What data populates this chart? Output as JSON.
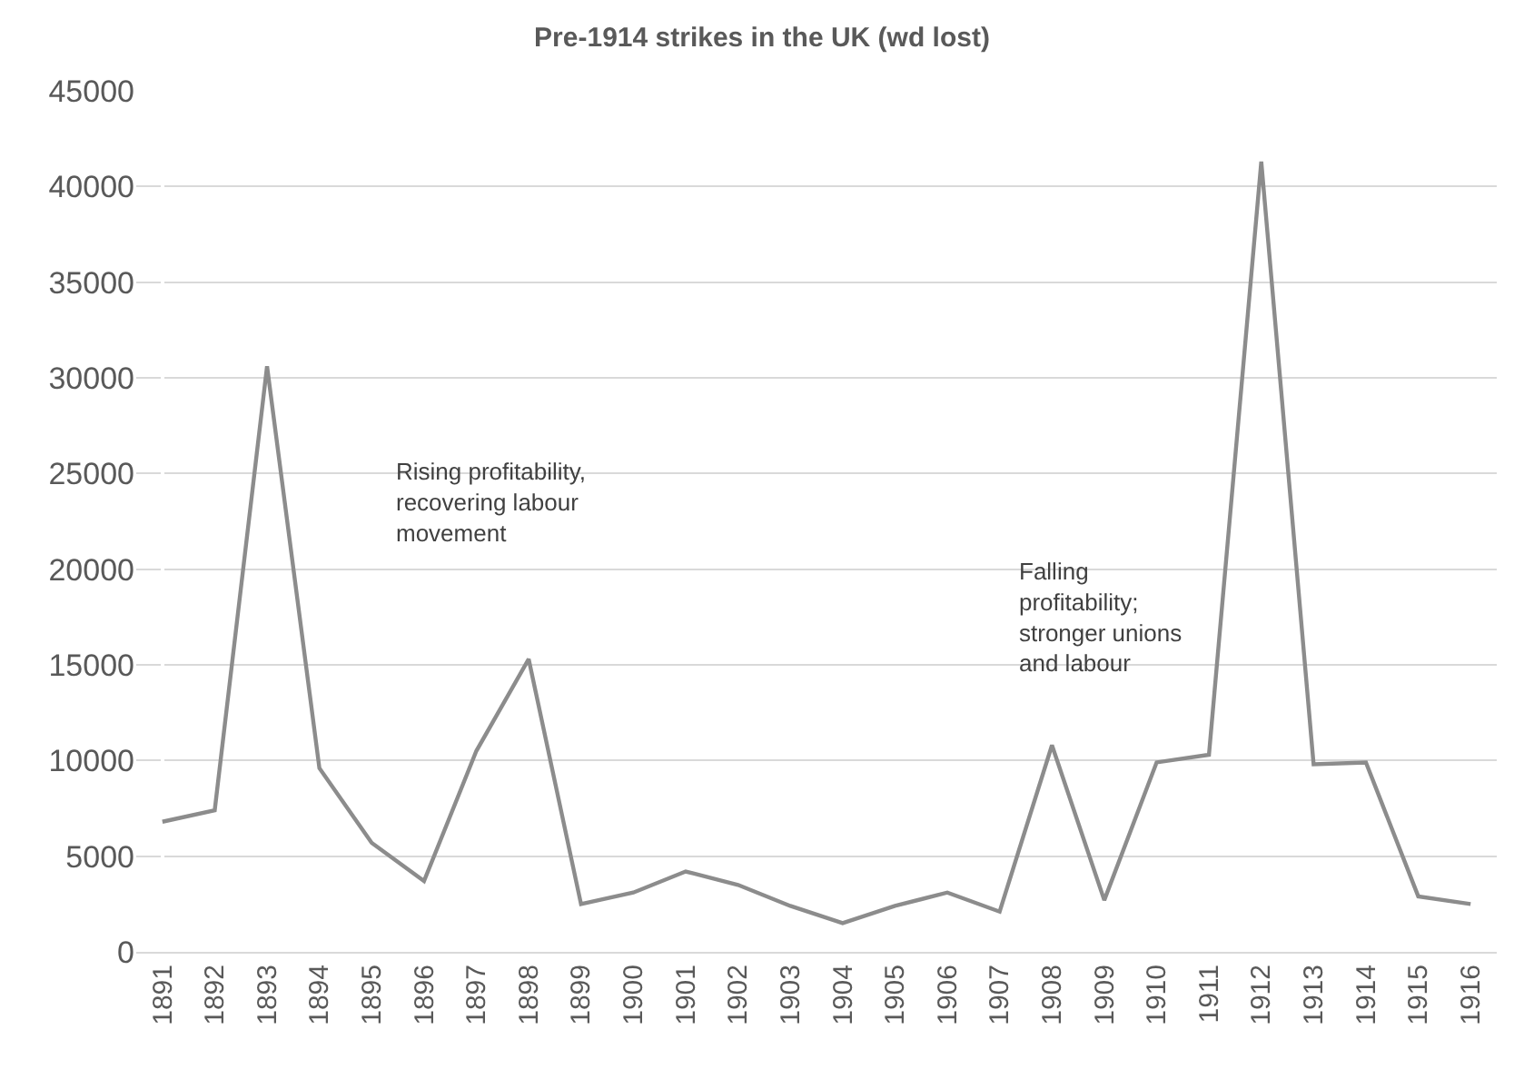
{
  "chart_data": {
    "type": "line",
    "title": "Pre-1914 strikes in the UK (wd lost)",
    "categories": [
      "1891",
      "1892",
      "1893",
      "1894",
      "1895",
      "1896",
      "1897",
      "1898",
      "1899",
      "1900",
      "1901",
      "1902",
      "1903",
      "1904",
      "1905",
      "1906",
      "1907",
      "1908",
      "1909",
      "1910",
      "1911",
      "1912",
      "1913",
      "1914",
      "1915",
      "1916"
    ],
    "series": [
      {
        "color": "#8c8c8c",
        "values": [
          6800,
          7400,
          30600,
          9600,
          5700,
          3700,
          10500,
          15300,
          2500,
          3100,
          4200,
          3500,
          2400,
          1500,
          2400,
          3100,
          2100,
          10800,
          2700,
          9900,
          10300,
          41300,
          9800,
          9900,
          2900,
          2500
        ]
      }
    ],
    "ylim": [
      0,
      45000
    ],
    "yticks": [
      0,
      5000,
      10000,
      15000,
      20000,
      25000,
      30000,
      35000,
      40000,
      45000
    ],
    "grid": "y",
    "legend": false,
    "marker": "none",
    "line_style": "solid",
    "annotations": [
      "Rising profitability,\nrecovering labour\nmovement",
      "Falling\nprofitability;\nstronger unions\nand labour"
    ]
  }
}
